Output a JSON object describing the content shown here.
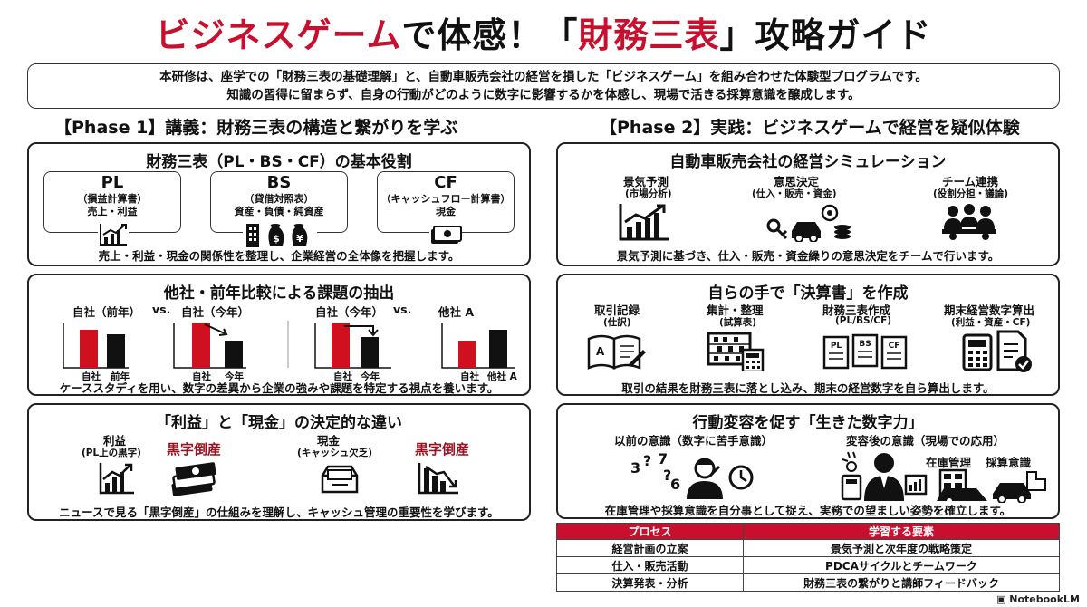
{
  "title": {
    "part1": "ビジネスゲーム",
    "part2": "で体感！「",
    "part3": "財務三表",
    "part4": "」攻略ガイド"
  },
  "intro": {
    "line1": "本研修は、座学での「財務三表の基礎理解」と、自動車販売会社の経営を損した「ビジネスゲーム」を組み合わせた体験型プログラムです。",
    "line2": "知識の習得に留まらず、自身の行動がどのように数字に影響するかを体感し、現場で活きる採算意識を醸成します。"
  },
  "phase1": {
    "heading": "【Phase 1】講義：財務三表の構造と繋がりを学ぶ",
    "roles": {
      "title": "財務三表（PL・BS・CF）の基本役割",
      "items": [
        {
          "abbr": "PL",
          "name": "（損益計算書）",
          "desc": "売上・利益",
          "icon": "rising-chart-icon"
        },
        {
          "abbr": "BS",
          "name": "（貸借対照表）",
          "desc": "資産・負債・純資産",
          "icon": "buildings-money-icon"
        },
        {
          "abbr": "CF",
          "name": "（キャッシュフロー計算書）",
          "desc": "現金",
          "icon": "cash-icon"
        }
      ],
      "footer": "売上・利益・現金の関係性を整理し、企業経営の全体像を把握します。"
    },
    "compare": {
      "title": "他社・前年比較による課題の抽出",
      "groups": [
        {
          "left": "自社（前年）",
          "vs": "vs.",
          "right": "自社（今年）",
          "bars": [
            "自社",
            "前年"
          ],
          "bars2": [
            "自社",
            "今年"
          ]
        },
        {
          "left": "自社（今年）",
          "vs": "vs.",
          "right": "他社 A",
          "bars": [
            "自社",
            "今年"
          ],
          "bars2": [
            "自社",
            "他社 A"
          ]
        }
      ],
      "footer": "ケーススタディを用い、数字の差異から企業の強みや課題を特定する視点を養います。"
    },
    "profit_cash": {
      "title": "「利益」と「現金」の決定的な違い",
      "profit": "利益",
      "profit_sub": "(PL上の黒字)",
      "bankrupt1": "黒字倒産",
      "cash": "現金",
      "cash_sub": "(キャッシュ欠乏)",
      "bankrupt2": "黒字倒産",
      "footer": "ニュースで見る「黒字倒産」の仕組みを理解し、キャッシュ管理の重要性を学びます。"
    }
  },
  "phase2": {
    "heading": "【Phase 2】実践：ビジネスゲームで経営を疑似体験",
    "simulation": {
      "title": "自動車販売会社の経営シミュレーション",
      "items": [
        {
          "label": "景気予測",
          "sub": "(市場分析)",
          "icon": "forecast-chart-icon"
        },
        {
          "label": "意思決定",
          "sub": "(仕入・販売・資金)",
          "icon": "decision-icon"
        },
        {
          "label": "チーム連携",
          "sub": "(役割分担・議論)",
          "icon": "team-icon"
        }
      ],
      "footer": "景気予測に基づき、仕入・販売・資金繰りの意思決定をチームで行います。"
    },
    "statements": {
      "title": "自らの手で「決算書」を作成",
      "items": [
        {
          "label": "取引記録",
          "sub": "(仕訳)",
          "icon": "ledger-icon"
        },
        {
          "label": "集計・整理",
          "sub": "(試算表)",
          "icon": "abacus-icon"
        },
        {
          "label": "財務三表作成",
          "sub": "(PL/BS/CF)",
          "icon": "documents-icon"
        },
        {
          "label": "期末経営数字算出",
          "sub": "(利益・資産・CF)",
          "icon": "calculator-icon"
        }
      ],
      "docs": [
        "PL",
        "BS",
        "CF"
      ],
      "footer": "取引の結果を財務三表に落とし込み、期末の経営数字を自ら算出します。"
    },
    "behavior": {
      "title": "行動変容を促す「生きた数字力」",
      "before": "以前の意識（数字に苦手意識）",
      "after": "変容後の意識（現場での応用）",
      "tag1": "在庫管理",
      "tag2": "採算意識",
      "digits": [
        "3",
        "?",
        "7",
        "?",
        "6"
      ],
      "footer": "在庫管理や採算意識を自分事として捉え、実務での望ましい姿勢を確立します。"
    },
    "table": {
      "headers": [
        "プロセス",
        "学習する要素"
      ],
      "rows": [
        [
          "経営計画の立案",
          "景気予測と次年度の戦略策定"
        ],
        [
          "仕入・販売活動",
          "PDCAサイクルとチームワーク"
        ],
        [
          "決算発表・分析",
          "財務三表の繋がりと講師フィードバック"
        ]
      ]
    }
  },
  "brand": "NotebookLM",
  "colors": {
    "accent": "#c8102e",
    "dark": "#111111"
  }
}
